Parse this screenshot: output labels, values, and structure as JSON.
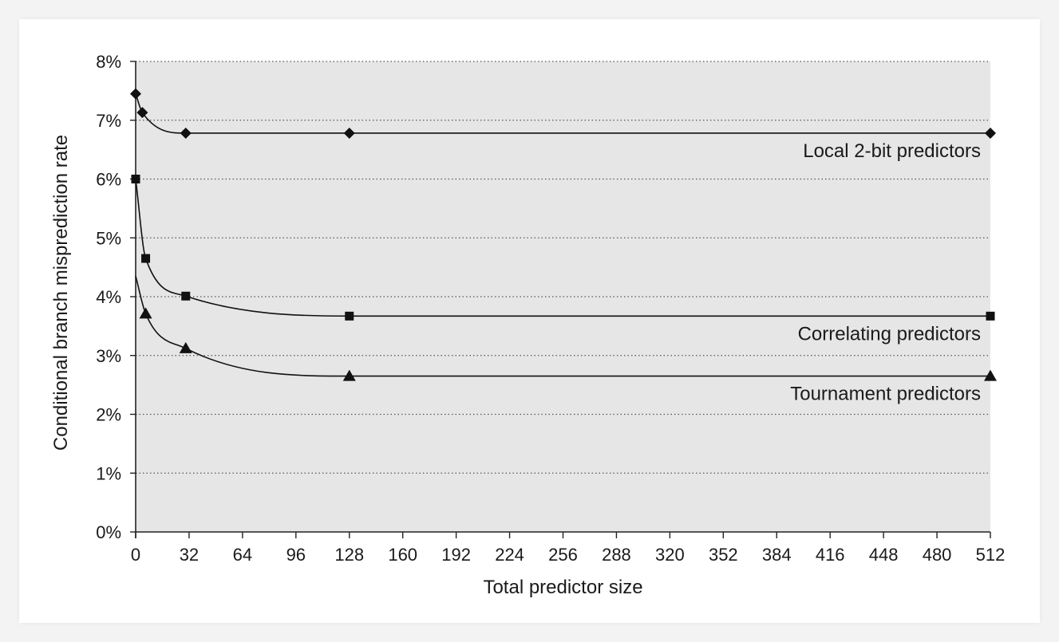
{
  "chart_data": {
    "type": "line",
    "title": "",
    "xlabel": "Total predictor size",
    "ylabel": "Conditional branch misprediction rate",
    "xlim": [
      0,
      512
    ],
    "ylim": [
      0,
      8
    ],
    "x_ticks": [
      0,
      32,
      64,
      96,
      128,
      160,
      192,
      224,
      256,
      288,
      320,
      352,
      384,
      416,
      448,
      480,
      512
    ],
    "x_tick_labels": [
      "0",
      "32",
      "64",
      "96",
      "128",
      "160",
      "192",
      "224",
      "256",
      "288",
      "320",
      "352",
      "384",
      "416",
      "448",
      "480",
      "512"
    ],
    "y_ticks": [
      0,
      1,
      2,
      3,
      4,
      5,
      6,
      7,
      8
    ],
    "y_tick_labels": [
      "0%",
      "1%",
      "2%",
      "3%",
      "4%",
      "5%",
      "6%",
      "7%",
      "8%"
    ],
    "grid": "horizontal dotted",
    "plot_background": "#e6e6e6",
    "series": [
      {
        "name": "Local 2-bit predictors",
        "marker": "diamond",
        "x": [
          0,
          4,
          30,
          128,
          512
        ],
        "y": [
          7.45,
          7.13,
          6.78,
          6.78,
          6.78
        ]
      },
      {
        "name": "Correlating predictors",
        "marker": "square",
        "x": [
          0,
          6,
          30,
          128,
          512
        ],
        "y": [
          6.0,
          4.65,
          4.01,
          3.67,
          3.67
        ]
      },
      {
        "name": "Tournament predictors",
        "marker": "triangle",
        "x": [
          6,
          30,
          128,
          512
        ],
        "y": [
          3.71,
          3.12,
          2.65,
          2.65
        ]
      }
    ]
  }
}
